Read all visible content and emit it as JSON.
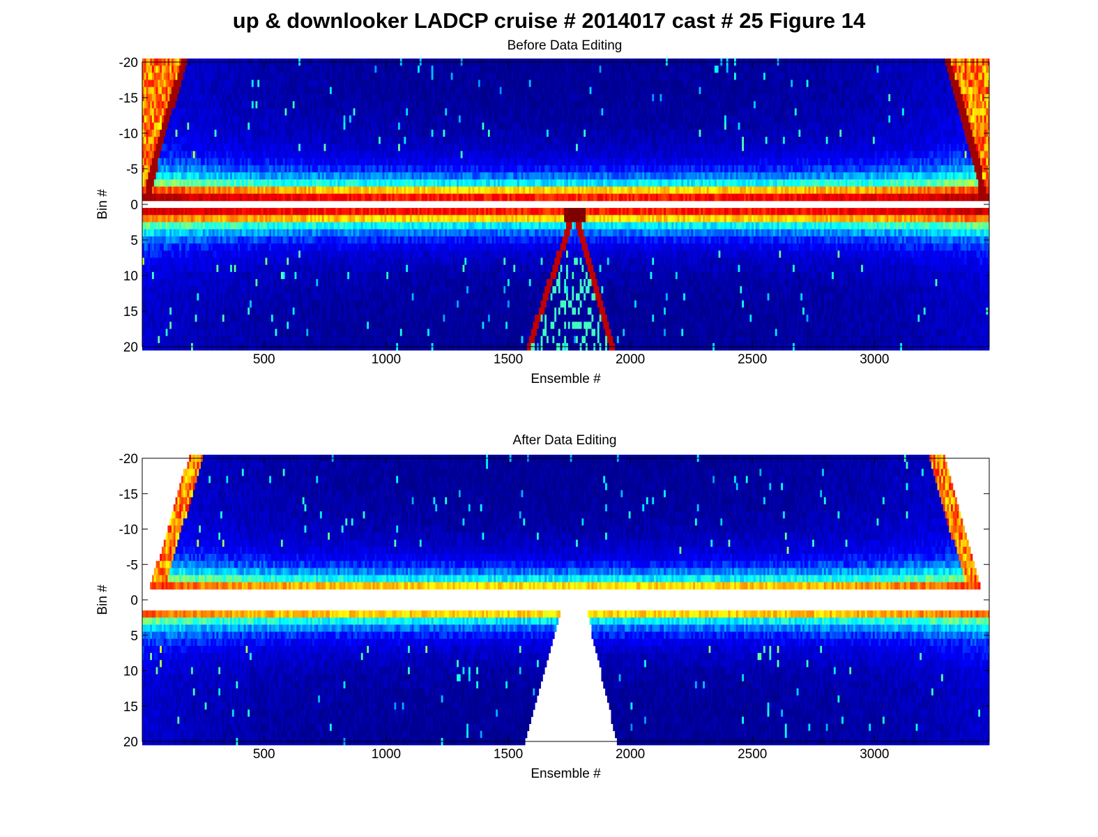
{
  "figure": {
    "title": "up & downlooker LADCP cruise # 2014017 cast # 25  Figure 14"
  },
  "colormap": "jet",
  "colormap_stops": [
    "#00008f",
    "#0000ff",
    "#00ffff",
    "#ffff00",
    "#ff0000",
    "#800000"
  ],
  "chart_data": [
    {
      "type": "heatmap",
      "title": "Before Data Editing",
      "xlabel": "Ensemble #",
      "ylabel": "Bin #",
      "xlim": [
        1,
        3470
      ],
      "ylim": [
        -20,
        20
      ],
      "y_reversed": true,
      "xticks": [
        500,
        1000,
        1500,
        2000,
        2500,
        3000
      ],
      "yticks": [
        -20,
        -15,
        -10,
        -5,
        0,
        5,
        10,
        15,
        20
      ],
      "up_bins": [
        -20,
        -1
      ],
      "down_bins": [
        1,
        20
      ],
      "blanked_bins": [
        0
      ],
      "seabed_echo": {
        "peak_ensemble": 1770,
        "reaches_bin_20_at": [
          1585,
          1925
        ]
      },
      "surface_echo": {
        "reaches_bin_minus_20_at": [
          175,
          3300
        ]
      },
      "grid": false
    },
    {
      "type": "heatmap",
      "title": "After Data Editing",
      "xlabel": "Ensemble #",
      "ylabel": "Bin #",
      "xlim": [
        1,
        3470
      ],
      "ylim": [
        -20,
        20
      ],
      "y_reversed": true,
      "xticks": [
        500,
        1000,
        1500,
        2000,
        2500,
        3000
      ],
      "yticks": [
        -20,
        -15,
        -10,
        -5,
        0,
        5,
        10,
        15,
        20
      ],
      "removed_bins": [
        -1,
        0,
        1
      ],
      "removed_near_bottom": {
        "bin_2_range": [
          1710,
          1825
        ],
        "bin_20_range": [
          1570,
          1945
        ]
      },
      "removed_near_surface": {
        "bin_minus_20_left_edge": 190,
        "bin_minus_20_right_edge": 3285,
        "bin_minus_2_left_edge": 35,
        "bin_minus_2_right_edge": 3435
      },
      "grid": false
    }
  ]
}
